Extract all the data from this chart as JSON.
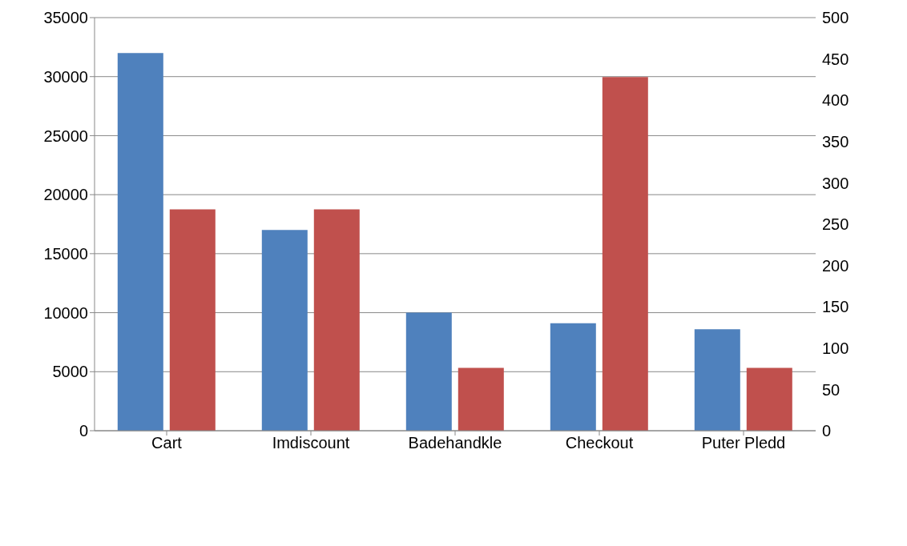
{
  "chart_data": {
    "type": "bar",
    "categories": [
      "Cart",
      "Imdiscount",
      "Badehandkle",
      "Checkout",
      "Puter Pledd"
    ],
    "series": [
      {
        "color": "#4f81bd",
        "values": [
          32000,
          17000,
          10000,
          9100,
          8600
        ]
      },
      {
        "color": "#c0504d",
        "values": [
          268,
          268,
          76,
          428,
          76
        ],
        "axis": "y2"
      }
    ],
    "ylim": [
      0,
      35000
    ],
    "yticks": [
      0,
      5000,
      10000,
      15000,
      20000,
      25000,
      30000,
      35000
    ],
    "y2lim": [
      0,
      500
    ],
    "y2ticks": [
      0,
      50,
      100,
      150,
      200,
      250,
      300,
      350,
      400,
      450,
      500
    ],
    "grid": "y"
  }
}
